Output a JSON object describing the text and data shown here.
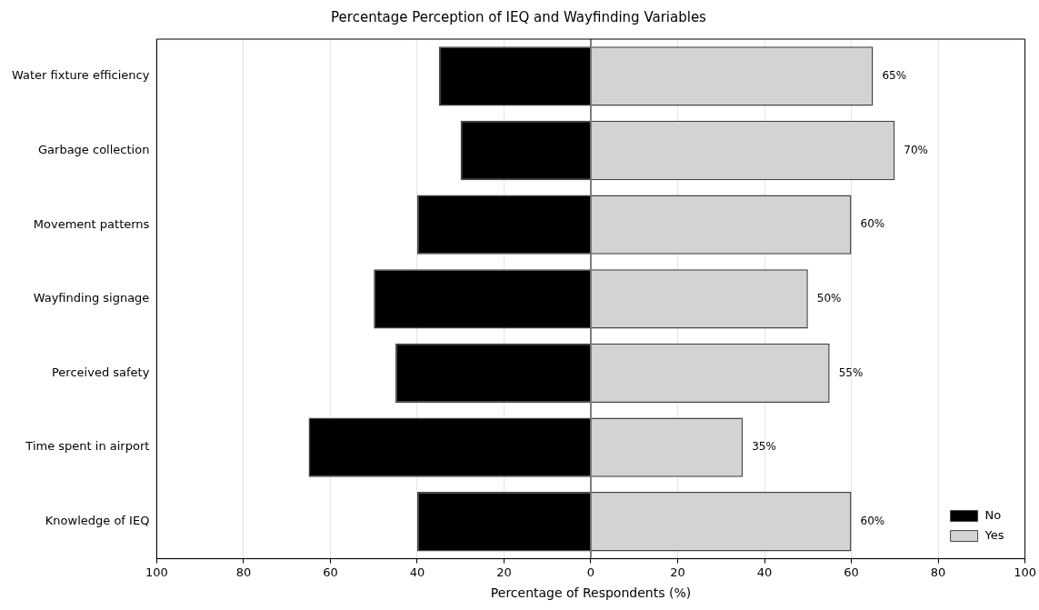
{
  "chart_data": {
    "type": "bar",
    "orientation": "horizontal",
    "stacked": true,
    "title": "Percentage Perception of IEQ and Wayfinding Variables",
    "xlabel": "Percentage of Respondents (%)",
    "categories": [
      "Water fixture efficiency",
      "Garbage collection",
      "Movement patterns",
      "Wayfinding signage",
      "Perceived safety",
      "Time spent in airport",
      "Knowledge of IEQ"
    ],
    "series": [
      {
        "name": "No",
        "color": "#000000",
        "values": [
          -35,
          -30,
          -40,
          -50,
          -45,
          -65,
          -40
        ]
      },
      {
        "name": "Yes",
        "color": "#d3d3d3",
        "values": [
          65,
          70,
          60,
          50,
          55,
          35,
          60
        ],
        "value_labels": [
          "65%",
          "70%",
          "60%",
          "50%",
          "55%",
          "35%",
          "60%"
        ]
      }
    ],
    "xlim": [
      -100,
      100
    ],
    "xticks": [
      {
        "value": -100,
        "label": "100"
      },
      {
        "value": -80,
        "label": "80"
      },
      {
        "value": -60,
        "label": "60"
      },
      {
        "value": -40,
        "label": "40"
      },
      {
        "value": -20,
        "label": "20"
      },
      0,
      20,
      40,
      60,
      80,
      100
    ],
    "ref_lines": [
      {
        "axis": "x",
        "value": 0,
        "color": "#555555"
      }
    ],
    "grid": "x",
    "legend": "bottom right"
  }
}
